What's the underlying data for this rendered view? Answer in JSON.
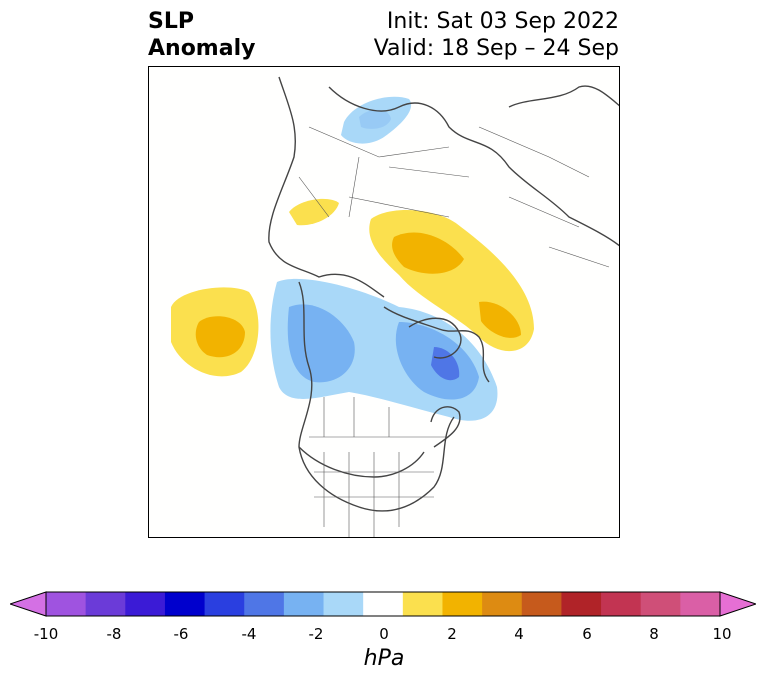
{
  "title": {
    "line1": "SLP",
    "line2": "Anomaly",
    "init": "Init: Sat 03 Sep 2022",
    "valid": "Valid: 18 Sep – 24 Sep"
  },
  "map": {
    "projection": "polar stereographic (North America / Arctic)",
    "features": [
      "coastlines",
      "country borders",
      "US state borders",
      "Canadian provinces"
    ],
    "anomalies": [
      {
        "region": "North Pacific",
        "sign": "positive",
        "peak_hPa": 3
      },
      {
        "region": "Central Europe",
        "sign": "negative",
        "peak_hPa": -1.5
      },
      {
        "region": "Western Russia",
        "sign": "positive",
        "peak_hPa": 2.5
      },
      {
        "region": "Scandinavia",
        "sign": "positive",
        "peak_hPa": 1.5
      },
      {
        "region": "Siberia",
        "sign": "positive",
        "peak_hPa": 3
      },
      {
        "region": "Alaska / Western Canada",
        "sign": "negative",
        "peak_hPa": -3
      },
      {
        "region": "Canadian Arctic / Hudson Bay",
        "sign": "negative",
        "peak_hPa": -4
      }
    ]
  },
  "colorbar": {
    "ticks": [
      "-10",
      "-8",
      "-6",
      "-4",
      "-2",
      "0",
      "2",
      "4",
      "6",
      "8",
      "10"
    ],
    "colors": [
      "#d470e4",
      "#9f53e0",
      "#6b3bd8",
      "#3b1bd6",
      "#0000cd",
      "#2a3fe0",
      "#4f76e6",
      "#77b2f2",
      "#a9d8f8",
      "#ffffff",
      "#fbe04e",
      "#f2b300",
      "#dd8b12",
      "#c65a1c",
      "#b02328",
      "#c23452",
      "#cf4f78",
      "#da5fa6",
      "#e66fd4"
    ],
    "unit": "hPa"
  }
}
